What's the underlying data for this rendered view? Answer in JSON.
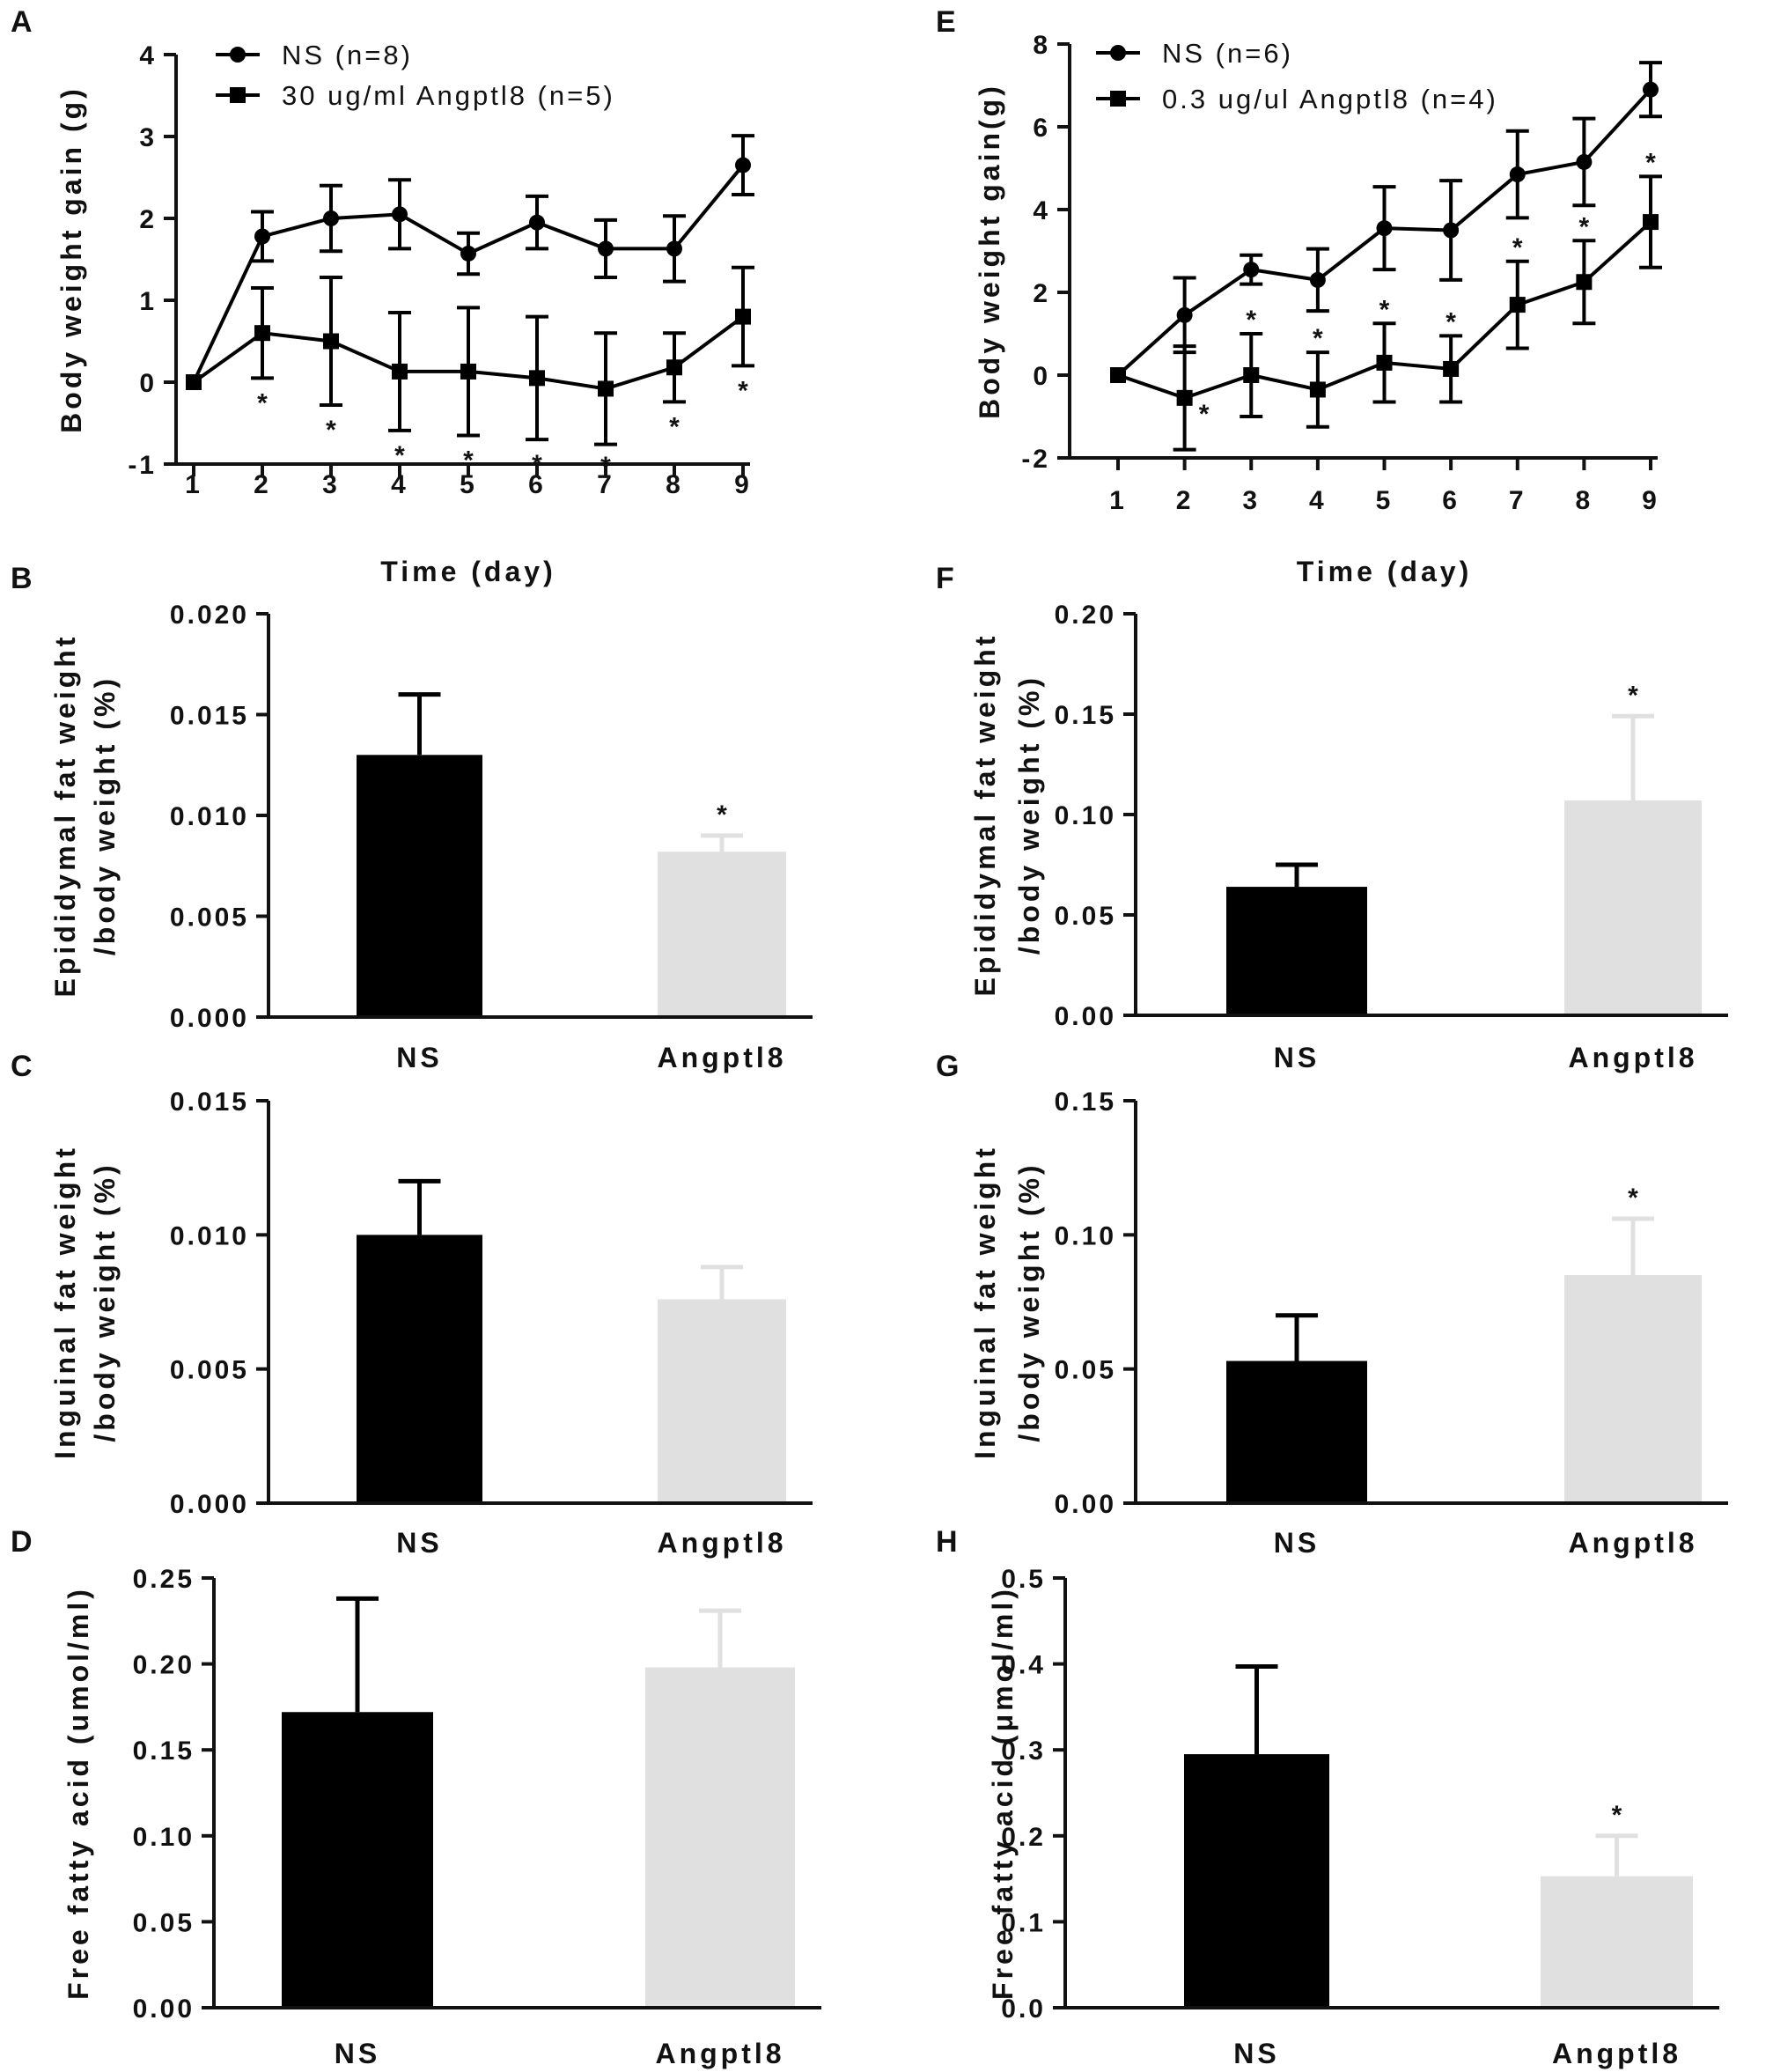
{
  "colors": {
    "ns": "#000000",
    "angptl8": "#e0e0e0",
    "axis": "#111111"
  },
  "chart_data": [
    {
      "panel": "A",
      "type": "line",
      "x": [
        1,
        2,
        3,
        4,
        5,
        6,
        7,
        8,
        9
      ],
      "xticks": [
        "1",
        "2",
        "3",
        "4",
        "5",
        "6",
        "7",
        "8",
        "9"
      ],
      "xlabel": "Time (day)",
      "ylabel": "Body weight gain (g)",
      "ylim": [
        -1,
        4
      ],
      "yticks": [
        "-1",
        "0",
        "1",
        "2",
        "3",
        "4"
      ],
      "series": [
        {
          "name": "NS (n=8)",
          "marker": "circle",
          "values": [
            0,
            1.78,
            2.0,
            2.05,
            1.57,
            1.95,
            1.63,
            1.63,
            2.65
          ],
          "errors": [
            0,
            0.3,
            0.4,
            0.42,
            0.25,
            0.32,
            0.35,
            0.4,
            0.36
          ]
        },
        {
          "name": "30 ug/ml Angptl8 (n=5)",
          "marker": "square",
          "values": [
            0,
            0.6,
            0.5,
            0.13,
            0.13,
            0.05,
            -0.08,
            0.18,
            0.8
          ],
          "errors": [
            0,
            0.55,
            0.78,
            0.72,
            0.78,
            0.75,
            0.68,
            0.42,
            0.6
          ],
          "significance": [
            null,
            "*",
            "*",
            "*",
            "*",
            "*",
            "*",
            "*",
            "*"
          ]
        }
      ]
    },
    {
      "panel": "E",
      "type": "line",
      "x": [
        1,
        2,
        3,
        4,
        5,
        6,
        7,
        8,
        9
      ],
      "xticks": [
        "1",
        "2",
        "3",
        "4",
        "5",
        "6",
        "7",
        "8",
        "9"
      ],
      "xlabel": "Time (day)",
      "ylabel": "Body weight gain(g)",
      "ylim": [
        -2,
        8
      ],
      "yticks": [
        "-2",
        "0",
        "2",
        "4",
        "6",
        "8"
      ],
      "series": [
        {
          "name": "NS (n=6)",
          "marker": "circle",
          "values": [
            0,
            1.45,
            2.55,
            2.3,
            3.55,
            3.5,
            4.85,
            5.15,
            6.9
          ],
          "errors": [
            0,
            0.9,
            0.35,
            0.75,
            1.0,
            1.2,
            1.05,
            1.05,
            0.65
          ]
        },
        {
          "name": "0.3 ug/ul Angptl8 (n=4)",
          "marker": "square",
          "values": [
            0,
            -0.55,
            0,
            -0.35,
            0.3,
            0.15,
            1.7,
            2.25,
            3.7
          ],
          "errors": [
            0,
            1.25,
            1.0,
            0.9,
            0.95,
            0.8,
            1.05,
            1.0,
            1.1
          ],
          "significance": [
            null,
            "*",
            "*",
            "*",
            "*",
            "*",
            "*",
            "*",
            "*"
          ]
        }
      ]
    },
    {
      "panel": "B",
      "type": "bar",
      "categories": [
        "NS",
        "Angptl8"
      ],
      "values": [
        0.013,
        0.0082
      ],
      "errors": [
        0.003,
        0.0008
      ],
      "significance": [
        "",
        "*"
      ],
      "ylabel_lines": [
        "Epididymal fat weight",
        "/body weight (%)"
      ],
      "ylim": [
        0,
        0.02
      ],
      "yticks": [
        "0.000",
        "0.005",
        "0.010",
        "0.015",
        "0.020"
      ]
    },
    {
      "panel": "F",
      "type": "bar",
      "categories": [
        "NS",
        "Angptl8"
      ],
      "values": [
        0.064,
        0.107
      ],
      "errors": [
        0.011,
        0.042
      ],
      "significance": [
        "",
        "*"
      ],
      "ylabel_lines": [
        "Epididymal fat weight",
        "/body weight (%)"
      ],
      "ylim": [
        0,
        0.2
      ],
      "yticks": [
        "0.00",
        "0.05",
        "0.10",
        "0.15",
        "0.20"
      ]
    },
    {
      "panel": "C",
      "type": "bar",
      "categories": [
        "NS",
        "Angptl8"
      ],
      "values": [
        0.01,
        0.0076
      ],
      "errors": [
        0.002,
        0.0012
      ],
      "significance": [
        "",
        ""
      ],
      "ylabel_lines": [
        "Inguinal fat weight",
        "/body weight (%)"
      ],
      "ylim": [
        0,
        0.015
      ],
      "yticks": [
        "0.000",
        "0.005",
        "0.010",
        "0.015"
      ]
    },
    {
      "panel": "G",
      "type": "bar",
      "categories": [
        "NS",
        "Angptl8"
      ],
      "values": [
        0.053,
        0.085
      ],
      "errors": [
        0.017,
        0.021
      ],
      "significance": [
        "",
        "*"
      ],
      "ylabel_lines": [
        "Inguinal fat weight",
        "/body weight (%)"
      ],
      "ylim": [
        0,
        0.15
      ],
      "yticks": [
        "0.00",
        "0.05",
        "0.10",
        "0.15"
      ]
    },
    {
      "panel": "D",
      "type": "bar",
      "categories": [
        "NS",
        "Angptl8"
      ],
      "values": [
        0.172,
        0.198
      ],
      "errors": [
        0.066,
        0.033
      ],
      "significance": [
        "",
        ""
      ],
      "ylabel_lines": [
        "Free fatty acid (umol/ml)"
      ],
      "ylim": [
        0,
        0.25
      ],
      "yticks": [
        "0.00",
        "0.05",
        "0.10",
        "0.15",
        "0.20",
        "0.25"
      ]
    },
    {
      "panel": "H",
      "type": "bar",
      "categories": [
        "NS",
        "Angptl8"
      ],
      "values": [
        0.295,
        0.153
      ],
      "errors": [
        0.102,
        0.047
      ],
      "significance": [
        "",
        "*"
      ],
      "ylabel_lines": [
        "Free fatty acid (μmol/ml)"
      ],
      "ylim": [
        0,
        0.5
      ],
      "yticks": [
        "0.0",
        "0.1",
        "0.2",
        "0.3",
        "0.4",
        "0.5"
      ]
    }
  ]
}
